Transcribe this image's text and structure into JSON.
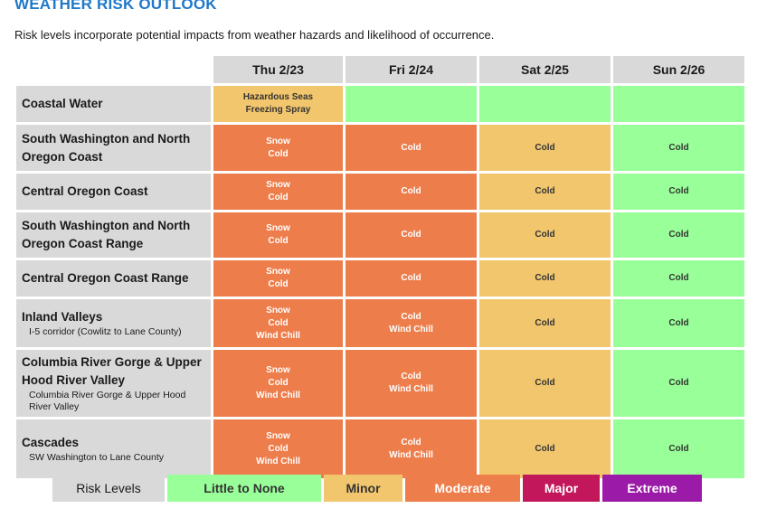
{
  "title": "WEATHER RISK OUTLOOK",
  "subtitle": "Risk levels incorporate potential impacts from weather hazards and likelihood of occurrence.",
  "days": [
    "Thu 2/23",
    "Fri 2/24",
    "Sat 2/25",
    "Sun 2/26"
  ],
  "colors": {
    "none": "#99ff99",
    "minor": "#f2c66d",
    "moderate": "#ed7d4b",
    "major": "#c2185b",
    "extreme": "#9c1aa8",
    "header": "#d9d9d9",
    "title": "#1f78c8"
  },
  "rows": [
    {
      "name": "Coastal Water",
      "sub": "",
      "cells": [
        {
          "level": "minor",
          "hazards": [
            "Hazardous Seas",
            "Freezing Spray"
          ]
        },
        {
          "level": "none",
          "hazards": []
        },
        {
          "level": "none",
          "hazards": []
        },
        {
          "level": "none",
          "hazards": []
        }
      ]
    },
    {
      "name": "South Washington and North Oregon Coast",
      "sub": "",
      "cells": [
        {
          "level": "moderate",
          "hazards": [
            "Snow",
            "Cold"
          ]
        },
        {
          "level": "moderate",
          "hazards": [
            "Cold"
          ]
        },
        {
          "level": "minor",
          "hazards": [
            "Cold"
          ]
        },
        {
          "level": "none",
          "hazards": [
            "Cold"
          ]
        }
      ]
    },
    {
      "name": "Central Oregon Coast",
      "sub": "",
      "cells": [
        {
          "level": "moderate",
          "hazards": [
            "Snow",
            "Cold"
          ]
        },
        {
          "level": "moderate",
          "hazards": [
            "Cold"
          ]
        },
        {
          "level": "minor",
          "hazards": [
            "Cold"
          ]
        },
        {
          "level": "none",
          "hazards": [
            "Cold"
          ]
        }
      ]
    },
    {
      "name": "South Washington and North Oregon Coast Range",
      "sub": "",
      "cells": [
        {
          "level": "moderate",
          "hazards": [
            "Snow",
            "Cold"
          ]
        },
        {
          "level": "moderate",
          "hazards": [
            "Cold"
          ]
        },
        {
          "level": "minor",
          "hazards": [
            "Cold"
          ]
        },
        {
          "level": "none",
          "hazards": [
            "Cold"
          ]
        }
      ]
    },
    {
      "name": "Central Oregon Coast Range",
      "sub": "",
      "cells": [
        {
          "level": "moderate",
          "hazards": [
            "Snow",
            "Cold"
          ]
        },
        {
          "level": "moderate",
          "hazards": [
            "Cold"
          ]
        },
        {
          "level": "minor",
          "hazards": [
            "Cold"
          ]
        },
        {
          "level": "none",
          "hazards": [
            "Cold"
          ]
        }
      ]
    },
    {
      "name": "Inland Valleys",
      "sub": "I-5 corridor (Cowlitz to Lane County)",
      "cells": [
        {
          "level": "moderate",
          "hazards": [
            "Snow",
            "Cold",
            "Wind Chill"
          ]
        },
        {
          "level": "moderate",
          "hazards": [
            "Cold",
            "Wind Chill"
          ]
        },
        {
          "level": "minor",
          "hazards": [
            "Cold"
          ]
        },
        {
          "level": "none",
          "hazards": [
            "Cold"
          ]
        }
      ]
    },
    {
      "name": "Columbia River Gorge & Upper Hood River Valley",
      "sub": "Columbia River Gorge & Upper Hood River Valley",
      "cells": [
        {
          "level": "moderate",
          "hazards": [
            "Snow",
            "Cold",
            "Wind Chill"
          ]
        },
        {
          "level": "moderate",
          "hazards": [
            "Cold",
            "Wind Chill"
          ]
        },
        {
          "level": "minor",
          "hazards": [
            "Cold"
          ]
        },
        {
          "level": "none",
          "hazards": [
            "Cold"
          ]
        }
      ]
    },
    {
      "name": "Cascades",
      "sub": "SW Washington to Lane County",
      "cells": [
        {
          "level": "moderate",
          "hazards": [
            "Snow",
            "Cold",
            "Wind Chill"
          ]
        },
        {
          "level": "moderate",
          "hazards": [
            "Cold",
            "Wind Chill"
          ]
        },
        {
          "level": "minor",
          "hazards": [
            "Cold"
          ]
        },
        {
          "level": "none",
          "hazards": [
            "Cold"
          ]
        }
      ]
    }
  ],
  "legend": {
    "label": "Risk Levels",
    "items": [
      {
        "key": "none",
        "label": "Little to None"
      },
      {
        "key": "minor",
        "label": "Minor"
      },
      {
        "key": "moderate",
        "label": "Moderate"
      },
      {
        "key": "major",
        "label": "Major"
      },
      {
        "key": "extreme",
        "label": "Extreme"
      }
    ]
  }
}
